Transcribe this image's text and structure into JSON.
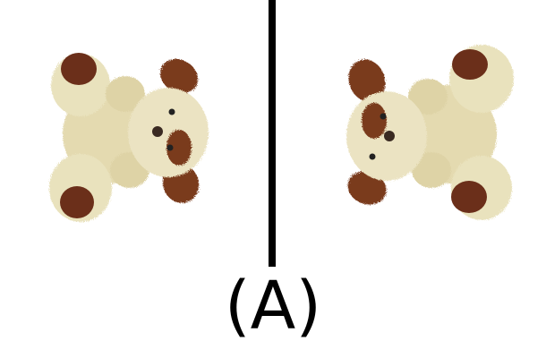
{
  "caption": "(A)",
  "images": {
    "left": {
      "icon": "teddy-bear-rotated-left"
    },
    "right": {
      "icon": "teddy-bear-rotated-right"
    }
  },
  "colors": {
    "fur": "#e7dfb8",
    "fur_shadow": "#cfc496",
    "pad": "#6b2f1a",
    "ear": "#7a3a1e",
    "divider": "#000000"
  }
}
